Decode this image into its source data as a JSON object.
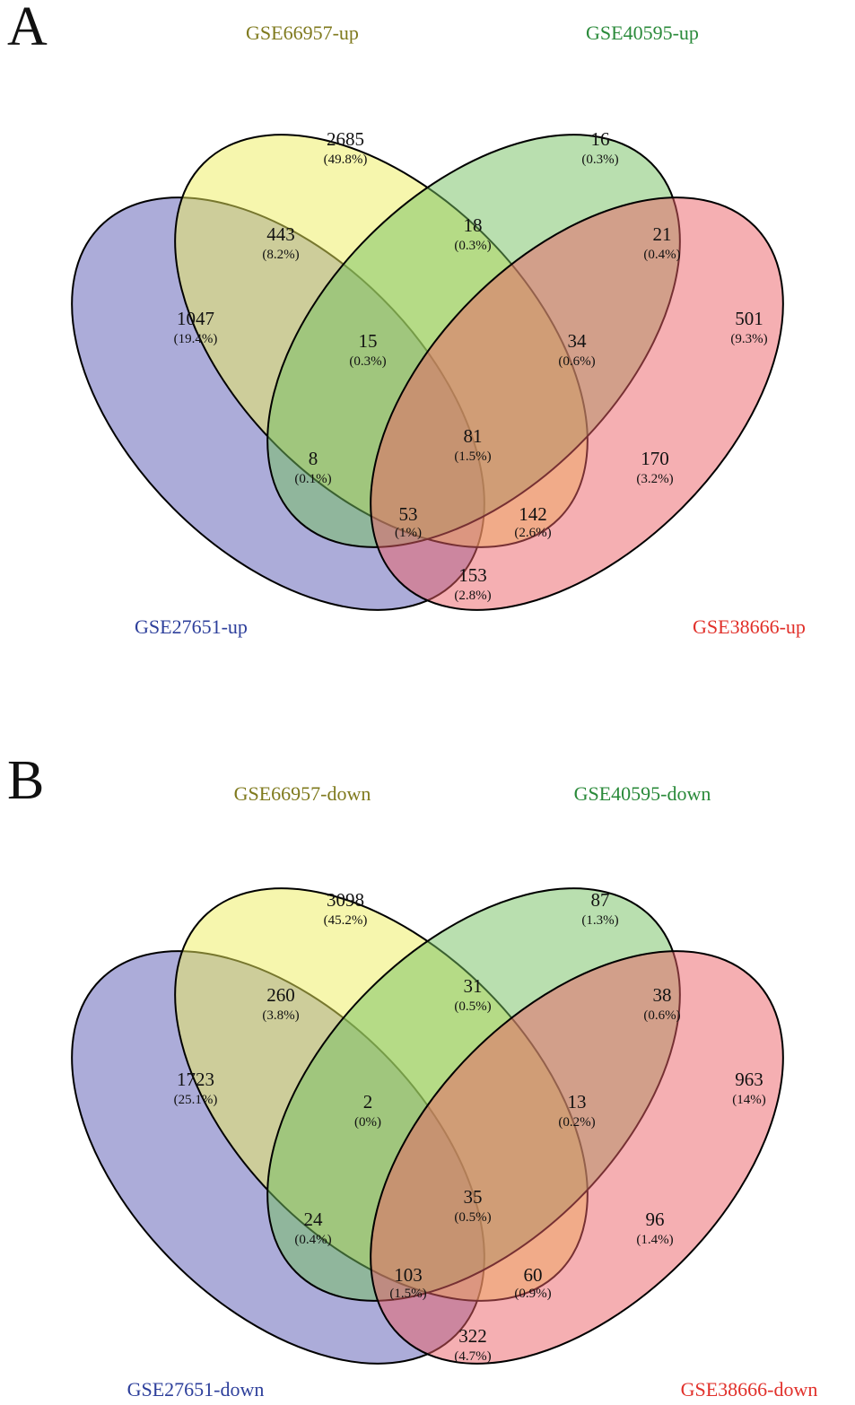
{
  "panels": [
    {
      "letter": "A",
      "sets": {
        "blue": {
          "label": "GSE27651-up",
          "fill": "#5a5ab4",
          "text_color": "#2d3f9b"
        },
        "yellow": {
          "label": "GSE66957-up",
          "fill": "#eeed5c",
          "text_color": "#7f7a1e"
        },
        "green": {
          "label": "GSE40595-up",
          "fill": "#74c060",
          "text_color": "#2a8a3a"
        },
        "red": {
          "label": "GSE38666-up",
          "fill": "#ec5f66",
          "text_color": "#e1302a"
        }
      },
      "regions": {
        "Y": {
          "count": "2685",
          "pct": "(49.8%)"
        },
        "G": {
          "count": "16",
          "pct": "(0.3%)"
        },
        "BY": {
          "count": "443",
          "pct": "(8.2%)"
        },
        "YG": {
          "count": "18",
          "pct": "(0.3%)"
        },
        "GR": {
          "count": "21",
          "pct": "(0.4%)"
        },
        "B": {
          "count": "1047",
          "pct": "(19.4%)"
        },
        "R": {
          "count": "501",
          "pct": "(9.3%)"
        },
        "BYG": {
          "count": "15",
          "pct": "(0.3%)"
        },
        "YGR": {
          "count": "34",
          "pct": "(0.6%)"
        },
        "BYGR": {
          "count": "81",
          "pct": "(1.5%)"
        },
        "BG": {
          "count": "8",
          "pct": "(0.1%)"
        },
        "YR": {
          "count": "170",
          "pct": "(3.2%)"
        },
        "BGR": {
          "count": "53",
          "pct": "(1%)"
        },
        "BYR": {
          "count": "142",
          "pct": "(2.6%)"
        },
        "BR": {
          "count": "153",
          "pct": "(2.8%)"
        }
      }
    },
    {
      "letter": "B",
      "sets": {
        "blue": {
          "label": "GSE27651-down",
          "fill": "#5a5ab4",
          "text_color": "#2d3f9b"
        },
        "yellow": {
          "label": "GSE66957-down",
          "fill": "#eeed5c",
          "text_color": "#7f7a1e"
        },
        "green": {
          "label": "GSE40595-down",
          "fill": "#74c060",
          "text_color": "#2a8a3a"
        },
        "red": {
          "label": "GSE38666-down",
          "fill": "#ec5f66",
          "text_color": "#e1302a"
        }
      },
      "regions": {
        "Y": {
          "count": "3098",
          "pct": "(45.2%)"
        },
        "G": {
          "count": "87",
          "pct": "(1.3%)"
        },
        "BY": {
          "count": "260",
          "pct": "(3.8%)"
        },
        "YG": {
          "count": "31",
          "pct": "(0.5%)"
        },
        "GR": {
          "count": "38",
          "pct": "(0.6%)"
        },
        "B": {
          "count": "1723",
          "pct": "(25.1%)"
        },
        "R": {
          "count": "963",
          "pct": "(14%)"
        },
        "BYG": {
          "count": "2",
          "pct": "(0%)"
        },
        "YGR": {
          "count": "13",
          "pct": "(0.2%)"
        },
        "BYGR": {
          "count": "35",
          "pct": "(0.5%)"
        },
        "BG": {
          "count": "24",
          "pct": "(0.4%)"
        },
        "YR": {
          "count": "96",
          "pct": "(1.4%)"
        },
        "BGR": {
          "count": "103",
          "pct": "(1.5%)"
        },
        "BYR": {
          "count": "60",
          "pct": "(0.9%)"
        },
        "BR": {
          "count": "322",
          "pct": "(4.7%)"
        }
      }
    }
  ]
}
